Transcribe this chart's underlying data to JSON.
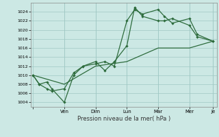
{
  "title": "",
  "xlabel": "Pression niveau de la mer( hPa )",
  "bg_color": "#cce8e4",
  "grid_color": "#a0c8c4",
  "line_color": "#2d6b3c",
  "ylim": [
    1003,
    1026
  ],
  "yticks": [
    1004,
    1006,
    1008,
    1010,
    1012,
    1014,
    1016,
    1018,
    1020,
    1022,
    1024
  ],
  "day_labels": [
    "",
    "Ven",
    "Dim",
    "Lun",
    "Mar",
    "Mer",
    "Je"
  ],
  "day_positions": [
    0,
    40,
    80,
    120,
    160,
    200,
    230
  ],
  "series1_x": [
    0,
    8,
    18,
    24,
    40,
    52,
    64,
    80,
    92,
    104,
    120,
    130,
    140,
    160,
    168,
    178,
    200,
    210,
    230
  ],
  "series1_y": [
    1010,
    1008,
    1008.5,
    1007,
    1004,
    1010,
    1012,
    1012.5,
    1013,
    1012,
    1022,
    1024.5,
    1023.5,
    1024.5,
    1023,
    1021.5,
    1022.5,
    1019,
    1017.5
  ],
  "series2_x": [
    0,
    8,
    18,
    24,
    40,
    52,
    64,
    80,
    92,
    104,
    120,
    130,
    140,
    160,
    168,
    178,
    200,
    210,
    230
  ],
  "series2_y": [
    1010,
    1008,
    1007,
    1006.5,
    1007,
    1010.5,
    1012,
    1013,
    1011,
    1013,
    1016.5,
    1025,
    1023,
    1022,
    1022,
    1022.5,
    1021,
    1018.5,
    1017.5
  ],
  "series3_x": [
    0,
    40,
    80,
    120,
    160,
    200,
    230
  ],
  "series3_y": [
    1010,
    1008,
    1012,
    1013,
    1016,
    1016,
    1017.5
  ]
}
